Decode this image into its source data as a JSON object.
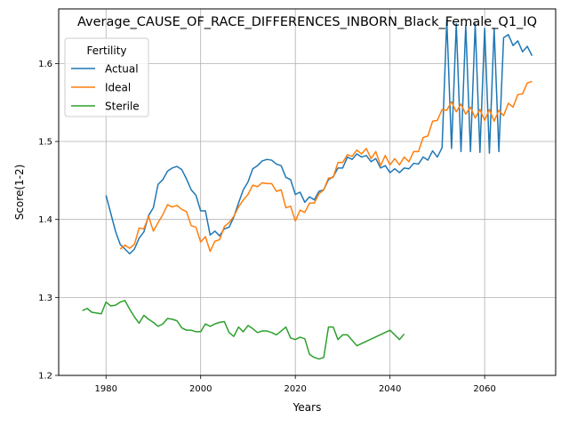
{
  "chart_data": {
    "type": "line",
    "title": "Average_CAUSE_OF_RACE_DIFFERENCES_INBORN_Black_Female_Q1_IQ",
    "xlabel": "Years",
    "ylabel": "Score(1-2)",
    "xlim": [
      1970,
      2075
    ],
    "ylim": [
      1.2,
      1.67
    ],
    "xticks": [
      1980,
      2000,
      2020,
      2040,
      2060
    ],
    "yticks": [
      1.2,
      1.3,
      1.4,
      1.5,
      1.6
    ],
    "grid": true,
    "legend": {
      "title": "Fertility",
      "position": "top-left"
    },
    "series": [
      {
        "name": "Actual",
        "color": "#1f77b4",
        "points": [
          [
            1980,
            1.431
          ],
          [
            1981,
            1.408
          ],
          [
            1982,
            1.385
          ],
          [
            1983,
            1.368
          ],
          [
            1984,
            1.362
          ],
          [
            1985,
            1.356
          ],
          [
            1986,
            1.362
          ],
          [
            1987,
            1.376
          ],
          [
            1988,
            1.384
          ],
          [
            1989,
            1.405
          ],
          [
            1990,
            1.415
          ],
          [
            1991,
            1.445
          ],
          [
            1992,
            1.451
          ],
          [
            1993,
            1.462
          ],
          [
            1994,
            1.466
          ],
          [
            1995,
            1.468
          ],
          [
            1996,
            1.464
          ],
          [
            1997,
            1.452
          ],
          [
            1998,
            1.438
          ],
          [
            1999,
            1.431
          ],
          [
            2000,
            1.411
          ],
          [
            2001,
            1.411
          ],
          [
            2002,
            1.38
          ],
          [
            2003,
            1.385
          ],
          [
            2004,
            1.379
          ],
          [
            2005,
            1.388
          ],
          [
            2006,
            1.39
          ],
          [
            2007,
            1.403
          ],
          [
            2008,
            1.421
          ],
          [
            2009,
            1.438
          ],
          [
            2010,
            1.448
          ],
          [
            2011,
            1.465
          ],
          [
            2012,
            1.469
          ],
          [
            2013,
            1.475
          ],
          [
            2014,
            1.477
          ],
          [
            2015,
            1.476
          ],
          [
            2016,
            1.471
          ],
          [
            2017,
            1.469
          ],
          [
            2018,
            1.454
          ],
          [
            2019,
            1.451
          ],
          [
            2020,
            1.432
          ],
          [
            2021,
            1.435
          ],
          [
            2022,
            1.422
          ],
          [
            2023,
            1.429
          ],
          [
            2024,
            1.425
          ],
          [
            2025,
            1.436
          ],
          [
            2026,
            1.438
          ],
          [
            2027,
            1.451
          ],
          [
            2028,
            1.455
          ],
          [
            2029,
            1.466
          ],
          [
            2030,
            1.466
          ],
          [
            2031,
            1.48
          ],
          [
            2032,
            1.477
          ],
          [
            2033,
            1.484
          ],
          [
            2034,
            1.48
          ],
          [
            2035,
            1.482
          ],
          [
            2036,
            1.474
          ],
          [
            2037,
            1.478
          ],
          [
            2038,
            1.466
          ],
          [
            2039,
            1.469
          ],
          [
            2040,
            1.46
          ],
          [
            2041,
            1.465
          ],
          [
            2042,
            1.46
          ],
          [
            2043,
            1.466
          ],
          [
            2044,
            1.465
          ],
          [
            2045,
            1.472
          ],
          [
            2046,
            1.471
          ],
          [
            2047,
            1.48
          ],
          [
            2048,
            1.476
          ],
          [
            2049,
            1.488
          ],
          [
            2050,
            1.48
          ],
          [
            2051,
            1.492
          ],
          [
            2052,
            1.656
          ],
          [
            2053,
            1.491
          ],
          [
            2054,
            1.651
          ],
          [
            2055,
            1.487
          ],
          [
            2056,
            1.649
          ],
          [
            2057,
            1.487
          ],
          [
            2058,
            1.651
          ],
          [
            2059,
            1.486
          ],
          [
            2060,
            1.645
          ],
          [
            2061,
            1.485
          ],
          [
            2062,
            1.645
          ],
          [
            2063,
            1.487
          ],
          [
            2064,
            1.633
          ],
          [
            2065,
            1.637
          ],
          [
            2066,
            1.623
          ],
          [
            2067,
            1.629
          ],
          [
            2068,
            1.615
          ],
          [
            2069,
            1.622
          ],
          [
            2070,
            1.61
          ]
        ]
      },
      {
        "name": "Ideal",
        "color": "#ff7f0e",
        "points": [
          [
            1983,
            1.362
          ],
          [
            1984,
            1.367
          ],
          [
            1985,
            1.363
          ],
          [
            1986,
            1.368
          ],
          [
            1987,
            1.389
          ],
          [
            1988,
            1.388
          ],
          [
            1989,
            1.404
          ],
          [
            1990,
            1.385
          ],
          [
            1991,
            1.396
          ],
          [
            1992,
            1.406
          ],
          [
            1993,
            1.419
          ],
          [
            1994,
            1.416
          ],
          [
            1995,
            1.418
          ],
          [
            1996,
            1.413
          ],
          [
            1997,
            1.41
          ],
          [
            1998,
            1.392
          ],
          [
            1999,
            1.39
          ],
          [
            2000,
            1.371
          ],
          [
            2001,
            1.378
          ],
          [
            2002,
            1.359
          ],
          [
            2003,
            1.372
          ],
          [
            2004,
            1.374
          ],
          [
            2005,
            1.391
          ],
          [
            2006,
            1.396
          ],
          [
            2007,
            1.404
          ],
          [
            2008,
            1.416
          ],
          [
            2009,
            1.425
          ],
          [
            2010,
            1.432
          ],
          [
            2011,
            1.444
          ],
          [
            2012,
            1.442
          ],
          [
            2013,
            1.447
          ],
          [
            2014,
            1.446
          ],
          [
            2015,
            1.446
          ],
          [
            2016,
            1.436
          ],
          [
            2017,
            1.438
          ],
          [
            2018,
            1.415
          ],
          [
            2019,
            1.417
          ],
          [
            2020,
            1.398
          ],
          [
            2021,
            1.412
          ],
          [
            2022,
            1.409
          ],
          [
            2023,
            1.421
          ],
          [
            2024,
            1.421
          ],
          [
            2025,
            1.433
          ],
          [
            2026,
            1.438
          ],
          [
            2027,
            1.453
          ],
          [
            2028,
            1.454
          ],
          [
            2029,
            1.473
          ],
          [
            2030,
            1.473
          ],
          [
            2031,
            1.483
          ],
          [
            2032,
            1.481
          ],
          [
            2033,
            1.489
          ],
          [
            2034,
            1.484
          ],
          [
            2035,
            1.491
          ],
          [
            2036,
            1.478
          ],
          [
            2037,
            1.487
          ],
          [
            2038,
            1.469
          ],
          [
            2039,
            1.482
          ],
          [
            2040,
            1.47
          ],
          [
            2041,
            1.478
          ],
          [
            2042,
            1.47
          ],
          [
            2043,
            1.48
          ],
          [
            2044,
            1.474
          ],
          [
            2045,
            1.487
          ],
          [
            2046,
            1.487
          ],
          [
            2047,
            1.505
          ],
          [
            2048,
            1.507
          ],
          [
            2049,
            1.526
          ],
          [
            2050,
            1.527
          ],
          [
            2051,
            1.541
          ],
          [
            2052,
            1.54
          ],
          [
            2053,
            1.551
          ],
          [
            2054,
            1.538
          ],
          [
            2055,
            1.548
          ],
          [
            2056,
            1.535
          ],
          [
            2057,
            1.544
          ],
          [
            2058,
            1.53
          ],
          [
            2059,
            1.541
          ],
          [
            2060,
            1.527
          ],
          [
            2061,
            1.541
          ],
          [
            2062,
            1.526
          ],
          [
            2063,
            1.54
          ],
          [
            2064,
            1.533
          ],
          [
            2065,
            1.549
          ],
          [
            2066,
            1.544
          ],
          [
            2067,
            1.56
          ],
          [
            2068,
            1.561
          ],
          [
            2069,
            1.575
          ],
          [
            2070,
            1.577
          ]
        ]
      },
      {
        "name": "Sterile",
        "color": "#2ca02c",
        "points": [
          [
            1975,
            1.283
          ],
          [
            1976,
            1.286
          ],
          [
            1977,
            1.281
          ],
          [
            1978,
            1.28
          ],
          [
            1979,
            1.279
          ],
          [
            1980,
            1.294
          ],
          [
            1981,
            1.289
          ],
          [
            1982,
            1.29
          ],
          [
            1983,
            1.294
          ],
          [
            1984,
            1.296
          ],
          [
            1985,
            1.285
          ],
          [
            1986,
            1.275
          ],
          [
            1987,
            1.267
          ],
          [
            1988,
            1.277
          ],
          [
            1989,
            1.272
          ],
          [
            1990,
            1.268
          ],
          [
            1991,
            1.263
          ],
          [
            1992,
            1.266
          ],
          [
            1993,
            1.273
          ],
          [
            1994,
            1.272
          ],
          [
            1995,
            1.27
          ],
          [
            1996,
            1.261
          ],
          [
            1997,
            1.258
          ],
          [
            1998,
            1.258
          ],
          [
            1999,
            1.256
          ],
          [
            2000,
            1.256
          ],
          [
            2001,
            1.266
          ],
          [
            2002,
            1.263
          ],
          [
            2003,
            1.266
          ],
          [
            2004,
            1.268
          ],
          [
            2005,
            1.269
          ],
          [
            2006,
            1.255
          ],
          [
            2007,
            1.25
          ],
          [
            2008,
            1.262
          ],
          [
            2009,
            1.256
          ],
          [
            2010,
            1.264
          ],
          [
            2011,
            1.26
          ],
          [
            2012,
            1.255
          ],
          [
            2013,
            1.257
          ],
          [
            2014,
            1.257
          ],
          [
            2015,
            1.255
          ],
          [
            2016,
            1.252
          ],
          [
            2017,
            1.257
          ],
          [
            2018,
            1.262
          ],
          [
            2019,
            1.248
          ],
          [
            2020,
            1.246
          ],
          [
            2021,
            1.249
          ],
          [
            2022,
            1.247
          ],
          [
            2023,
            1.227
          ],
          [
            2024,
            1.223
          ],
          [
            2025,
            1.221
          ],
          [
            2026,
            1.223
          ],
          [
            2027,
            1.262
          ],
          [
            2028,
            1.262
          ],
          [
            2029,
            1.246
          ],
          [
            2030,
            1.252
          ],
          [
            2031,
            1.252
          ],
          [
            2032,
            1.245
          ],
          [
            2033,
            1.238
          ],
          [
            2040,
            1.258
          ],
          [
            2042,
            1.246
          ],
          [
            2043,
            1.253
          ]
        ]
      }
    ]
  }
}
